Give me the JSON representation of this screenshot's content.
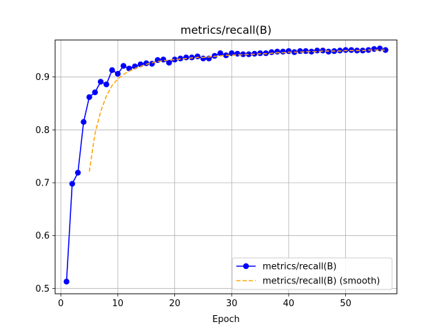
{
  "chart_data": {
    "type": "line",
    "title": "metrics/recall(B)",
    "xlabel": "Epoch",
    "ylabel": "",
    "xlim": [
      -1,
      59
    ],
    "ylim": [
      0.49,
      0.97
    ],
    "xticks": [
      0,
      10,
      20,
      30,
      40,
      50
    ],
    "yticks": [
      0.5,
      0.6,
      0.7,
      0.8,
      0.9
    ],
    "grid": true,
    "legend_position": "lower-right",
    "series": [
      {
        "name": "metrics/recall(B)",
        "color": "#0000ff",
        "style": "solid-line-with-circle-markers",
        "x": [
          1,
          2,
          3,
          4,
          5,
          6,
          7,
          8,
          9,
          10,
          11,
          12,
          13,
          14,
          15,
          16,
          17,
          18,
          19,
          20,
          21,
          22,
          23,
          24,
          25,
          26,
          27,
          28,
          29,
          30,
          31,
          32,
          33,
          34,
          35,
          36,
          37,
          38,
          39,
          40,
          41,
          42,
          43,
          44,
          45,
          46,
          47,
          48,
          49,
          50,
          51,
          52,
          53,
          54,
          55,
          56,
          57
        ],
        "y": [
          0.513,
          0.698,
          0.719,
          0.815,
          0.862,
          0.871,
          0.891,
          0.886,
          0.913,
          0.906,
          0.921,
          0.916,
          0.92,
          0.924,
          0.926,
          0.925,
          0.932,
          0.933,
          0.927,
          0.933,
          0.935,
          0.937,
          0.937,
          0.939,
          0.935,
          0.935,
          0.94,
          0.945,
          0.941,
          0.945,
          0.944,
          0.943,
          0.943,
          0.944,
          0.945,
          0.945,
          0.947,
          0.948,
          0.948,
          0.949,
          0.947,
          0.949,
          0.949,
          0.948,
          0.95,
          0.95,
          0.948,
          0.949,
          0.95,
          0.951,
          0.951,
          0.95,
          0.95,
          0.951,
          0.953,
          0.954,
          0.951
        ]
      },
      {
        "name": "metrics/recall(B) (smooth)",
        "color": "#ffa500",
        "style": "dashed-line",
        "x": [
          5,
          6,
          7,
          8,
          9,
          10,
          11,
          12,
          13,
          14,
          15,
          16,
          17,
          18,
          19,
          20,
          21,
          22,
          23,
          24,
          25,
          26,
          27,
          28,
          29,
          30,
          31,
          32,
          33,
          34,
          35,
          36,
          37,
          38,
          39,
          40,
          41,
          42,
          43,
          44,
          45,
          46,
          47,
          48,
          49,
          50,
          51,
          52,
          53,
          54,
          55,
          56,
          57
        ],
        "y": [
          0.721,
          0.793,
          0.835,
          0.864,
          0.884,
          0.896,
          0.905,
          0.911,
          0.916,
          0.92,
          0.924,
          0.927,
          0.929,
          0.931,
          0.932,
          0.933,
          0.934,
          0.935,
          0.936,
          0.937,
          0.937,
          0.938,
          0.939,
          0.94,
          0.941,
          0.941,
          0.942,
          0.942,
          0.943,
          0.943,
          0.944,
          0.944,
          0.945,
          0.946,
          0.946,
          0.947,
          0.947,
          0.947,
          0.948,
          0.948,
          0.948,
          0.949,
          0.949,
          0.949,
          0.949,
          0.95,
          0.95,
          0.95,
          0.95,
          0.951,
          0.951,
          0.951,
          0.951
        ]
      }
    ]
  }
}
